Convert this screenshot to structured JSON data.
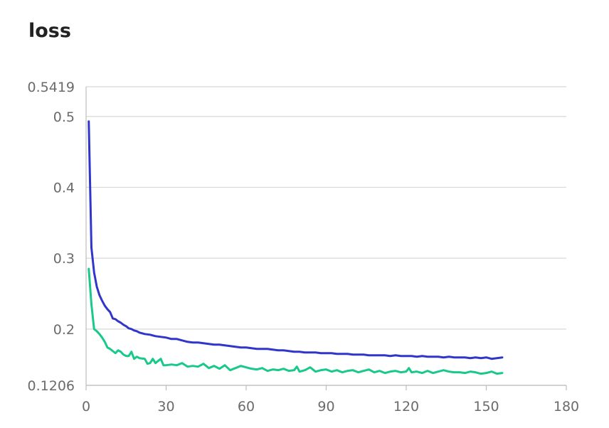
{
  "chart_data": {
    "type": "line",
    "title": "loss",
    "xlabel": "",
    "ylabel": "",
    "xlim": [
      0,
      180
    ],
    "ylim": [
      0.1206,
      0.5419
    ],
    "x_ticks": [
      "0",
      "30",
      "60",
      "90",
      "120",
      "150",
      "180"
    ],
    "y_ticks": [
      {
        "value": 0.5419,
        "label": "0.5419"
      },
      {
        "value": 0.5,
        "label": "0.5"
      },
      {
        "value": 0.4,
        "label": "0.4"
      },
      {
        "value": 0.3,
        "label": "0.3"
      },
      {
        "value": 0.2,
        "label": "0.2"
      },
      {
        "value": 0.1206,
        "label": "0.1206"
      }
    ],
    "grid": true,
    "legend": "none",
    "series": [
      {
        "color": "#2f36c9",
        "points": [
          [
            1,
            0.493
          ],
          [
            2,
            0.315
          ],
          [
            3,
            0.28
          ],
          [
            4,
            0.26
          ],
          [
            5,
            0.248
          ],
          [
            6,
            0.24
          ],
          [
            7,
            0.233
          ],
          [
            8,
            0.228
          ],
          [
            9,
            0.224
          ],
          [
            10,
            0.215
          ],
          [
            11,
            0.214
          ],
          [
            12,
            0.211
          ],
          [
            13,
            0.209
          ],
          [
            14,
            0.206
          ],
          [
            15,
            0.204
          ],
          [
            16,
            0.201
          ],
          [
            17,
            0.2
          ],
          [
            18,
            0.198
          ],
          [
            19,
            0.197
          ],
          [
            20,
            0.195
          ],
          [
            22,
            0.193
          ],
          [
            24,
            0.192
          ],
          [
            26,
            0.19
          ],
          [
            28,
            0.189
          ],
          [
            30,
            0.188
          ],
          [
            32,
            0.186
          ],
          [
            34,
            0.186
          ],
          [
            36,
            0.184
          ],
          [
            38,
            0.182
          ],
          [
            40,
            0.181
          ],
          [
            42,
            0.181
          ],
          [
            44,
            0.18
          ],
          [
            46,
            0.179
          ],
          [
            48,
            0.178
          ],
          [
            50,
            0.178
          ],
          [
            52,
            0.177
          ],
          [
            54,
            0.176
          ],
          [
            56,
            0.175
          ],
          [
            58,
            0.174
          ],
          [
            60,
            0.174
          ],
          [
            62,
            0.173
          ],
          [
            64,
            0.172
          ],
          [
            66,
            0.172
          ],
          [
            68,
            0.172
          ],
          [
            70,
            0.171
          ],
          [
            72,
            0.17
          ],
          [
            74,
            0.17
          ],
          [
            76,
            0.169
          ],
          [
            78,
            0.168
          ],
          [
            80,
            0.168
          ],
          [
            82,
            0.167
          ],
          [
            84,
            0.167
          ],
          [
            86,
            0.167
          ],
          [
            88,
            0.166
          ],
          [
            90,
            0.166
          ],
          [
            92,
            0.166
          ],
          [
            94,
            0.165
          ],
          [
            96,
            0.165
          ],
          [
            98,
            0.165
          ],
          [
            100,
            0.164
          ],
          [
            102,
            0.164
          ],
          [
            104,
            0.164
          ],
          [
            106,
            0.163
          ],
          [
            108,
            0.163
          ],
          [
            110,
            0.163
          ],
          [
            112,
            0.163
          ],
          [
            114,
            0.162
          ],
          [
            116,
            0.163
          ],
          [
            118,
            0.162
          ],
          [
            120,
            0.162
          ],
          [
            122,
            0.162
          ],
          [
            124,
            0.161
          ],
          [
            126,
            0.162
          ],
          [
            128,
            0.161
          ],
          [
            130,
            0.161
          ],
          [
            132,
            0.161
          ],
          [
            134,
            0.16
          ],
          [
            136,
            0.161
          ],
          [
            138,
            0.16
          ],
          [
            140,
            0.16
          ],
          [
            142,
            0.16
          ],
          [
            144,
            0.159
          ],
          [
            146,
            0.16
          ],
          [
            148,
            0.159
          ],
          [
            150,
            0.16
          ],
          [
            152,
            0.158
          ],
          [
            154,
            0.159
          ],
          [
            156,
            0.16
          ]
        ]
      },
      {
        "color": "#19c98a",
        "points": [
          [
            1,
            0.285
          ],
          [
            2,
            0.235
          ],
          [
            3,
            0.2
          ],
          [
            4,
            0.197
          ],
          [
            5,
            0.193
          ],
          [
            6,
            0.188
          ],
          [
            7,
            0.182
          ],
          [
            8,
            0.174
          ],
          [
            9,
            0.172
          ],
          [
            10,
            0.169
          ],
          [
            11,
            0.166
          ],
          [
            12,
            0.17
          ],
          [
            13,
            0.168
          ],
          [
            14,
            0.164
          ],
          [
            15,
            0.162
          ],
          [
            16,
            0.162
          ],
          [
            17,
            0.168
          ],
          [
            18,
            0.158
          ],
          [
            19,
            0.161
          ],
          [
            20,
            0.159
          ],
          [
            22,
            0.158
          ],
          [
            23,
            0.151
          ],
          [
            24,
            0.152
          ],
          [
            25,
            0.158
          ],
          [
            26,
            0.152
          ],
          [
            28,
            0.158
          ],
          [
            29,
            0.149
          ],
          [
            30,
            0.149
          ],
          [
            32,
            0.15
          ],
          [
            34,
            0.149
          ],
          [
            36,
            0.152
          ],
          [
            38,
            0.147
          ],
          [
            40,
            0.148
          ],
          [
            42,
            0.147
          ],
          [
            44,
            0.151
          ],
          [
            46,
            0.145
          ],
          [
            48,
            0.148
          ],
          [
            50,
            0.144
          ],
          [
            52,
            0.149
          ],
          [
            54,
            0.142
          ],
          [
            56,
            0.145
          ],
          [
            58,
            0.148
          ],
          [
            60,
            0.146
          ],
          [
            62,
            0.144
          ],
          [
            64,
            0.143
          ],
          [
            66,
            0.145
          ],
          [
            68,
            0.141
          ],
          [
            70,
            0.143
          ],
          [
            72,
            0.142
          ],
          [
            74,
            0.144
          ],
          [
            76,
            0.141
          ],
          [
            78,
            0.142
          ],
          [
            79,
            0.147
          ],
          [
            80,
            0.14
          ],
          [
            82,
            0.142
          ],
          [
            84,
            0.146
          ],
          [
            86,
            0.14
          ],
          [
            88,
            0.142
          ],
          [
            90,
            0.143
          ],
          [
            92,
            0.14
          ],
          [
            94,
            0.142
          ],
          [
            96,
            0.139
          ],
          [
            98,
            0.141
          ],
          [
            100,
            0.142
          ],
          [
            102,
            0.139
          ],
          [
            104,
            0.141
          ],
          [
            106,
            0.143
          ],
          [
            108,
            0.139
          ],
          [
            110,
            0.141
          ],
          [
            112,
            0.138
          ],
          [
            114,
            0.14
          ],
          [
            116,
            0.141
          ],
          [
            118,
            0.139
          ],
          [
            120,
            0.14
          ],
          [
            121,
            0.145
          ],
          [
            122,
            0.139
          ],
          [
            124,
            0.14
          ],
          [
            126,
            0.138
          ],
          [
            128,
            0.141
          ],
          [
            130,
            0.138
          ],
          [
            132,
            0.14
          ],
          [
            134,
            0.142
          ],
          [
            136,
            0.14
          ],
          [
            138,
            0.139
          ],
          [
            140,
            0.139
          ],
          [
            142,
            0.138
          ],
          [
            144,
            0.14
          ],
          [
            146,
            0.139
          ],
          [
            148,
            0.137
          ],
          [
            150,
            0.138
          ],
          [
            152,
            0.14
          ],
          [
            154,
            0.137
          ],
          [
            156,
            0.138
          ]
        ]
      }
    ]
  }
}
